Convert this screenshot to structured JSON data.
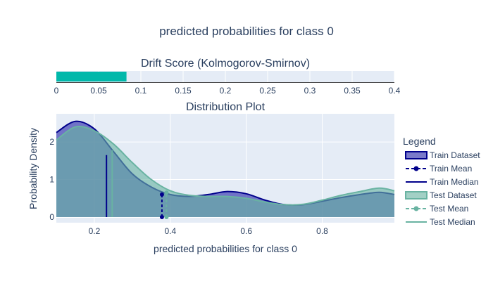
{
  "chart_data": [
    {
      "type": "bar",
      "title": "Drift Score (Kolmogorov-Smirnov)",
      "orientation": "horizontal",
      "values": [
        0.083
      ],
      "xlim": [
        0,
        0.4
      ],
      "x_ticks": [
        "0",
        "0.05",
        "0.1",
        "0.15",
        "0.2",
        "0.25",
        "0.3",
        "0.35",
        "0.4"
      ],
      "bar_color": "#01b8aa"
    },
    {
      "type": "area",
      "title": "Distribution Plot",
      "xlabel": "predicted probabilities for class 0",
      "ylabel": "Probability Density",
      "xlim": [
        0.1,
        0.99
      ],
      "ylim": [
        -0.15,
        2.75
      ],
      "x_ticks": [
        "0.2",
        "0.4",
        "0.6",
        "0.8"
      ],
      "x_tick_values": [
        0.2,
        0.4,
        0.6,
        0.8
      ],
      "y_ticks": [
        "0",
        "1",
        "2"
      ],
      "y_tick_values": [
        0,
        1,
        2
      ],
      "x_grid": [
        0.1,
        0.15,
        0.2,
        0.25,
        0.3,
        0.35,
        0.4,
        0.45,
        0.5,
        0.55,
        0.6,
        0.65,
        0.7,
        0.75,
        0.8,
        0.85,
        0.9,
        0.95,
        0.99
      ],
      "series": [
        {
          "name": "Train Dataset",
          "color": "#00008b",
          "fill": "rgba(40,40,170,0.62)",
          "y": [
            2.25,
            2.55,
            2.35,
            1.75,
            1.15,
            0.8,
            0.6,
            0.55,
            0.6,
            0.68,
            0.62,
            0.45,
            0.33,
            0.33,
            0.42,
            0.52,
            0.6,
            0.66,
            0.6
          ]
        },
        {
          "name": "Test Dataset",
          "color": "#69b3a2",
          "fill": "rgba(105,179,162,0.62)",
          "y": [
            2.05,
            2.4,
            2.3,
            1.95,
            1.45,
            1.0,
            0.7,
            0.58,
            0.55,
            0.55,
            0.5,
            0.4,
            0.33,
            0.34,
            0.45,
            0.58,
            0.68,
            0.77,
            0.7
          ]
        }
      ],
      "train_mean": {
        "x": 0.378,
        "y": 0.6
      },
      "train_median": {
        "x": 0.232,
        "y": 1.65
      },
      "test_mean": {
        "x": 0.39,
        "y": 0.65
      },
      "test_median": {
        "x": 0.247,
        "y": 1.78
      }
    }
  ],
  "main_title": "predicted probabilities for class 0",
  "legend": {
    "title": "Legend",
    "items": [
      {
        "label": "Train Dataset",
        "kind": "area",
        "color": "#00008b",
        "fill": "rgba(40,40,170,0.62)"
      },
      {
        "label": "Train Mean",
        "kind": "dash-marker",
        "color": "#00008b"
      },
      {
        "label": "Train Median",
        "kind": "line",
        "color": "#00008b"
      },
      {
        "label": "Test Dataset",
        "kind": "area",
        "color": "#69b3a2",
        "fill": "rgba(105,179,162,0.62)"
      },
      {
        "label": "Test Mean",
        "kind": "dash-marker",
        "color": "#69b3a2"
      },
      {
        "label": "Test Median",
        "kind": "line",
        "color": "#69b3a2"
      }
    ]
  }
}
